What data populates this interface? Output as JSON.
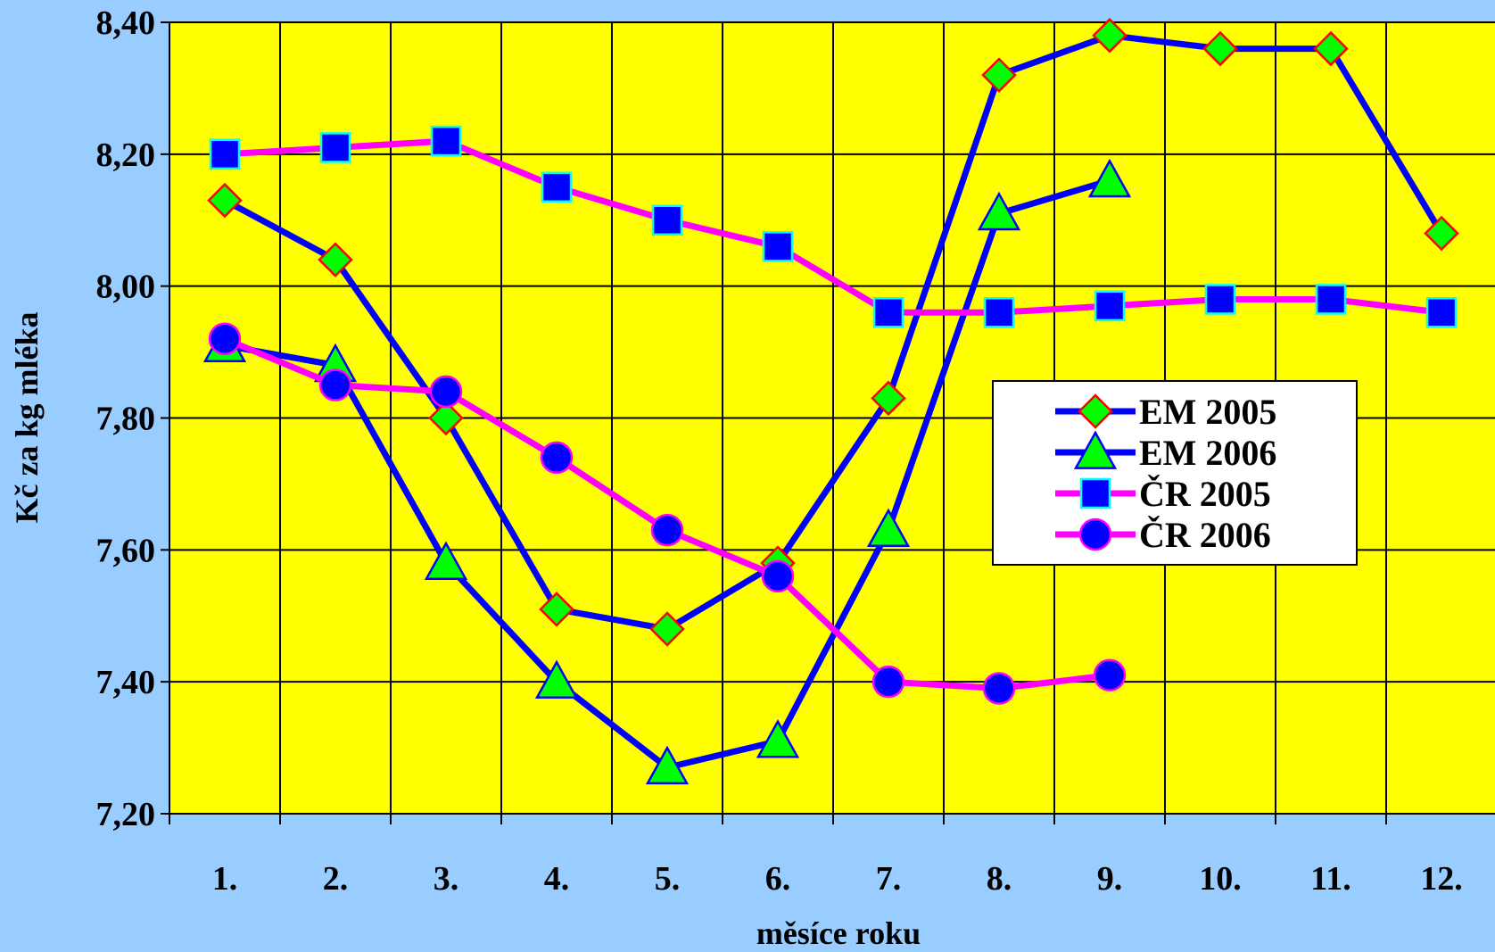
{
  "chart_data": {
    "type": "line",
    "xlabel": "měsíce roku",
    "ylabel": "Kč za kg mléka",
    "ylim": [
      7.2,
      8.4
    ],
    "yticks": [
      "7,20",
      "7,40",
      "7,60",
      "7,80",
      "8,00",
      "8,20",
      "8,40"
    ],
    "categories": [
      "1.",
      "2.",
      "3.",
      "4.",
      "5.",
      "6.",
      "7.",
      "8.",
      "9.",
      "10.",
      "11.",
      "12."
    ],
    "grid": true,
    "legend_position": "right-center",
    "series": [
      {
        "name": "EM 2005",
        "marker": "diamond",
        "line_color": "#0000ff",
        "marker_fill": "#00ff00",
        "marker_stroke": "#ff0000",
        "values": [
          8.13,
          8.04,
          7.8,
          7.51,
          7.48,
          7.58,
          7.83,
          8.32,
          8.38,
          8.36,
          8.36,
          8.08
        ]
      },
      {
        "name": "EM 2006",
        "marker": "triangle",
        "line_color": "#0000ff",
        "marker_fill": "#00ff00",
        "marker_stroke": "#0000ff",
        "values": [
          7.91,
          7.88,
          7.58,
          7.4,
          7.27,
          7.31,
          7.63,
          8.11,
          8.16,
          null,
          null,
          null
        ]
      },
      {
        "name": "ČR 2005",
        "marker": "square",
        "line_color": "#ff00ff",
        "marker_fill": "#0000ff",
        "marker_stroke": "#00ffff",
        "values": [
          8.2,
          8.21,
          8.22,
          8.15,
          8.1,
          8.06,
          7.96,
          7.96,
          7.97,
          7.98,
          7.98,
          7.96
        ]
      },
      {
        "name": "ČR 2006",
        "marker": "circle",
        "line_color": "#ff00ff",
        "marker_fill": "#0000ff",
        "marker_stroke": "#ff00ff",
        "values": [
          7.92,
          7.85,
          7.84,
          7.74,
          7.63,
          7.56,
          7.4,
          7.39,
          7.41,
          null,
          null,
          null
        ]
      }
    ]
  },
  "colors": {
    "page_background": "#99ccff",
    "plot_background": "#ffff00",
    "gridline": "#000000"
  }
}
